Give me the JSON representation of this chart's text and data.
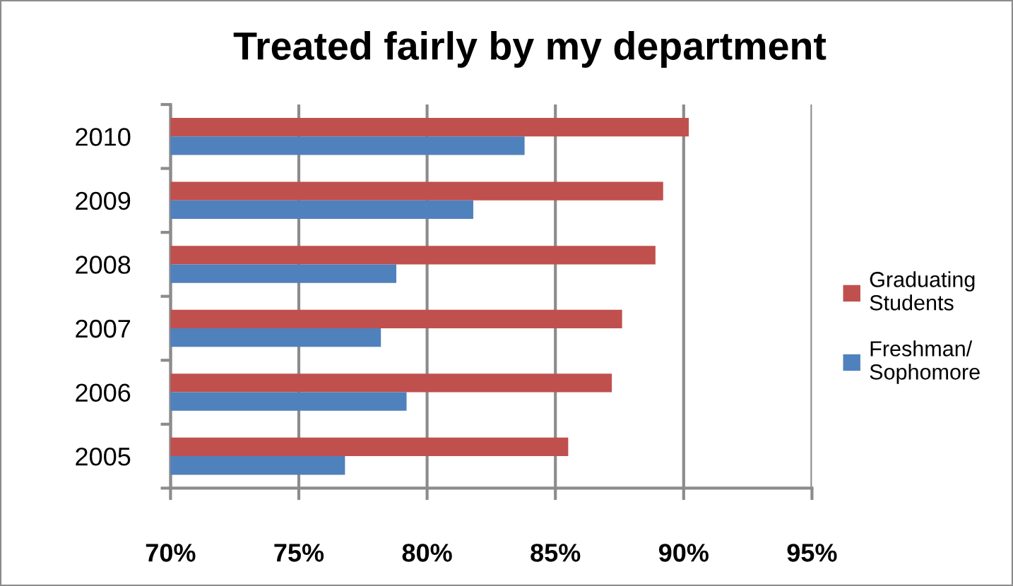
{
  "chart_data": {
    "type": "bar",
    "orientation": "horizontal",
    "title": "Treated fairly by my department",
    "categories": [
      "2010",
      "2009",
      "2008",
      "2007",
      "2006",
      "2005"
    ],
    "series": [
      {
        "name": "Graduating\nStudents",
        "color": "#c0504d",
        "values": [
          90.2,
          89.2,
          88.9,
          87.6,
          87.2,
          85.5
        ]
      },
      {
        "name": "Freshman/\nSophomore",
        "color": "#4f81bd",
        "values": [
          83.8,
          81.8,
          78.8,
          78.2,
          79.2,
          76.8
        ]
      }
    ],
    "xlim": [
      70,
      95
    ],
    "xticks": [
      {
        "value": 70,
        "label": "70%"
      },
      {
        "value": 75,
        "label": "75%"
      },
      {
        "value": 80,
        "label": "80%"
      },
      {
        "value": 85,
        "label": "85%"
      },
      {
        "value": 90,
        "label": "90%"
      },
      {
        "value": 95,
        "label": "95%"
      }
    ],
    "grid": "x",
    "legend": "right"
  }
}
